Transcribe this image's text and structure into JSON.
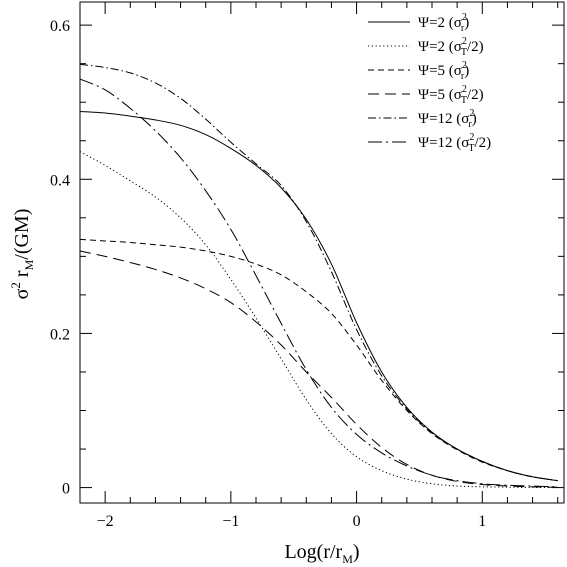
{
  "chart_data": {
    "type": "line",
    "title": "",
    "xlabel": "Log(r/r_M)",
    "ylabel": "σ² r_M/(GM)",
    "xlim": [
      -2.2,
      1.65
    ],
    "ylim": [
      -0.02,
      0.63
    ],
    "xticks": [
      -2,
      -1,
      0,
      1
    ],
    "xtick_labels": [
      "−2",
      "−1",
      "0",
      "1"
    ],
    "yticks": [
      0,
      0.2,
      0.4,
      0.6
    ],
    "ytick_labels": [
      "0",
      "0.2",
      "0.4",
      "0.6"
    ],
    "legend_position": "top-right",
    "grid": false,
    "series": [
      {
        "name": "Ψ=2 (σ_r²)",
        "dash": "solid",
        "x": [
          -2.2,
          -2.0,
          -1.8,
          -1.6,
          -1.4,
          -1.2,
          -1.0,
          -0.8,
          -0.6,
          -0.4,
          -0.2,
          0.0,
          0.2,
          0.4,
          0.6,
          0.8,
          1.0,
          1.2,
          1.4,
          1.6
        ],
        "y": [
          0.488,
          0.486,
          0.482,
          0.477,
          0.47,
          0.458,
          0.44,
          0.418,
          0.389,
          0.348,
          0.29,
          0.214,
          0.15,
          0.104,
          0.072,
          0.05,
          0.034,
          0.022,
          0.014,
          0.009
        ]
      },
      {
        "name": "Ψ=2 (σ_T²/2)",
        "dash": "dotted",
        "x": [
          -2.2,
          -2.0,
          -1.8,
          -1.6,
          -1.4,
          -1.2,
          -1.0,
          -0.8,
          -0.6,
          -0.4,
          -0.2,
          0.0,
          0.2,
          0.4,
          0.6,
          0.8,
          1.0,
          1.2,
          1.4,
          1.6
        ],
        "y": [
          0.436,
          0.418,
          0.398,
          0.377,
          0.35,
          0.315,
          0.27,
          0.22,
          0.167,
          0.114,
          0.07,
          0.04,
          0.022,
          0.011,
          0.005,
          0.002,
          0.001,
          0.0005,
          0.0002,
          0.0001
        ]
      },
      {
        "name": "Ψ=5 (σ_r²)",
        "dash": "dashed",
        "x": [
          -2.2,
          -2.0,
          -1.8,
          -1.6,
          -1.4,
          -1.2,
          -1.0,
          -0.8,
          -0.6,
          -0.4,
          -0.2,
          0.0,
          0.2,
          0.4,
          0.6,
          0.8,
          1.0,
          1.2,
          1.4,
          1.6
        ],
        "y": [
          0.322,
          0.32,
          0.318,
          0.315,
          0.312,
          0.307,
          0.3,
          0.29,
          0.276,
          0.254,
          0.226,
          0.185,
          0.139,
          0.1,
          0.07,
          0.049,
          0.033,
          0.022,
          0.014,
          0.009
        ]
      },
      {
        "name": "Ψ=5 (σ_T²/2)",
        "dash": "longdash",
        "x": [
          -2.2,
          -2.0,
          -1.8,
          -1.6,
          -1.4,
          -1.2,
          -1.0,
          -0.8,
          -0.6,
          -0.4,
          -0.2,
          0.0,
          0.2,
          0.4,
          0.6,
          0.8,
          1.0,
          1.2,
          1.4,
          1.6
        ],
        "y": [
          0.307,
          0.3,
          0.292,
          0.283,
          0.272,
          0.258,
          0.24,
          0.215,
          0.185,
          0.15,
          0.117,
          0.082,
          0.052,
          0.03,
          0.016,
          0.008,
          0.004,
          0.002,
          0.001,
          0.0005
        ]
      },
      {
        "name": "Ψ=12 (σ_r²)",
        "dash": "dashdot",
        "x": [
          -2.2,
          -2.0,
          -1.8,
          -1.6,
          -1.4,
          -1.2,
          -1.0,
          -0.8,
          -0.6,
          -0.4,
          -0.2,
          0.0,
          0.2,
          0.4,
          0.6,
          0.8,
          1.0,
          1.2,
          1.4,
          1.6
        ],
        "y": [
          0.549,
          0.545,
          0.538,
          0.525,
          0.505,
          0.478,
          0.448,
          0.42,
          0.392,
          0.345,
          0.28,
          0.205,
          0.145,
          0.102,
          0.071,
          0.05,
          0.034,
          0.022,
          0.014,
          0.009
        ]
      },
      {
        "name": "Ψ=12 (σ_T²/2)",
        "dash": "longdashdot",
        "x": [
          -2.2,
          -2.0,
          -1.8,
          -1.6,
          -1.4,
          -1.2,
          -1.0,
          -0.8,
          -0.6,
          -0.4,
          -0.2,
          0.0,
          0.2,
          0.4,
          0.6,
          0.8,
          1.0,
          1.2,
          1.4,
          1.6
        ],
        "y": [
          0.53,
          0.516,
          0.492,
          0.463,
          0.428,
          0.385,
          0.335,
          0.275,
          0.213,
          0.153,
          0.104,
          0.069,
          0.045,
          0.028,
          0.016,
          0.009,
          0.005,
          0.003,
          0.002,
          0.001
        ]
      }
    ],
    "legend": [
      {
        "psi": "Ψ=2",
        "quantity": "σ",
        "sup": "2",
        "sub": "r",
        "tail": ""
      },
      {
        "psi": "Ψ=2",
        "quantity": "σ",
        "sup": "2",
        "sub": "T",
        "tail": "/2"
      },
      {
        "psi": "Ψ=5",
        "quantity": "σ",
        "sup": "2",
        "sub": "r",
        "tail": ""
      },
      {
        "psi": "Ψ=5",
        "quantity": "σ",
        "sup": "2",
        "sub": "T",
        "tail": "/2"
      },
      {
        "psi": "Ψ=12",
        "quantity": "σ",
        "sup": "2",
        "sub": "r",
        "tail": ""
      },
      {
        "psi": "Ψ=12",
        "quantity": "σ",
        "sup": "2",
        "sub": "T",
        "tail": "/2"
      }
    ],
    "axis_text": {
      "x_main": "Log(r/r",
      "x_sub": "M",
      "x_close": ")",
      "y_sigma": "σ",
      "y_sup": "2",
      "y_r": " r",
      "y_sub": "M",
      "y_rest": "/(GM)"
    }
  }
}
